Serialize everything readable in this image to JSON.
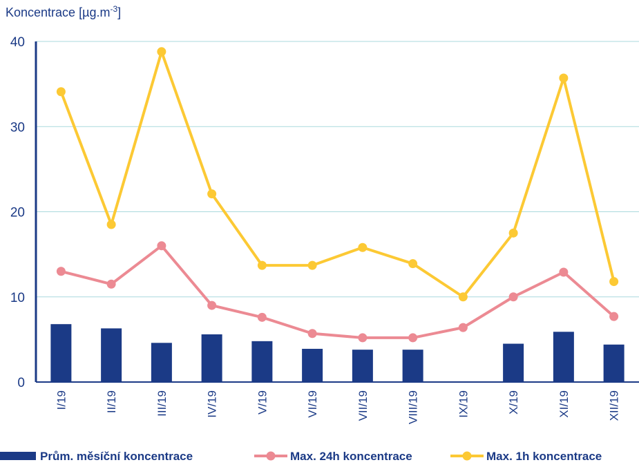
{
  "chart_data": {
    "type": "bar_line",
    "ylabel": [
      "Koncentrace [µg.m",
      "-3",
      "]"
    ],
    "categories": [
      "I/19",
      "II/19",
      "III/19",
      "IV/19",
      "V/19",
      "VI/19",
      "VII/19",
      "VIII/19",
      "IX/19",
      "X/19",
      "XI/19",
      "XII/19"
    ],
    "series": [
      {
        "name": "Prům. měsíční koncentrace",
        "type": "bar",
        "color": "#1b3a86",
        "values": [
          6.8,
          6.3,
          4.6,
          5.6,
          4.8,
          3.9,
          3.8,
          3.8,
          null,
          4.5,
          5.9,
          4.4
        ]
      },
      {
        "name": "Max. 24h koncentrace",
        "type": "line",
        "color": "#ec8a93",
        "values": [
          13.0,
          11.5,
          16.0,
          9.0,
          7.6,
          5.7,
          5.2,
          5.2,
          6.4,
          10.0,
          12.9,
          7.7
        ]
      },
      {
        "name": "Max. 1h koncentrace",
        "type": "line",
        "color": "#fcc934",
        "values": [
          34.1,
          18.5,
          38.8,
          22.1,
          13.7,
          13.7,
          15.8,
          13.9,
          10.0,
          17.5,
          35.7,
          11.8
        ]
      }
    ],
    "ylim": [
      0,
      40
    ],
    "yticks": [
      0,
      10,
      20,
      30,
      40
    ],
    "grid": true,
    "legend": "bottom"
  }
}
